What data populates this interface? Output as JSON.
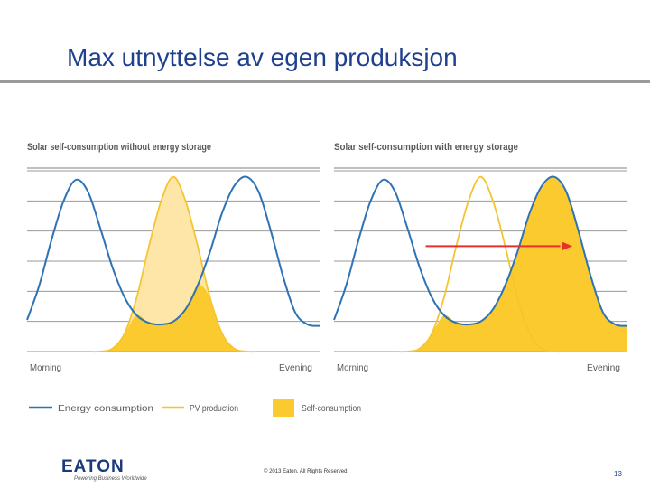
{
  "slide": {
    "title": "Max utnyttelse av egen produksjon",
    "copyright": "© 2013 Eaton. All Rights Reserved.",
    "page_number": "13"
  },
  "brand": {
    "logo_text": "EATON",
    "tagline": "Powering Business Worldwide"
  },
  "colors": {
    "consumption": "#2f73b5",
    "pv": "#f5c531",
    "self_consumption": "#fbca2e",
    "pv_fill_light": "#fde6a8",
    "arrow": "#e8312a",
    "grid": "#9a9a9a",
    "title": "#1f3f8f"
  },
  "chart_data": [
    {
      "type": "area",
      "title": "Solar self-consumption without energy storage",
      "x_tick_labels": [
        "Morning",
        "Evening"
      ],
      "x": [
        0,
        1,
        2,
        3,
        4,
        5,
        6,
        7,
        8,
        9,
        10,
        11,
        12,
        13,
        14,
        15,
        16,
        17,
        18,
        19,
        20,
        21,
        22,
        23,
        24
      ],
      "ylim": [
        0,
        6
      ],
      "grid": true,
      "series": [
        {
          "name": "Energy consumption",
          "style": "line",
          "values": [
            1.05,
            2.2,
            3.7,
            5.0,
            5.7,
            5.3,
            4.1,
            2.8,
            1.8,
            1.2,
            0.95,
            0.9,
            1.0,
            1.4,
            2.2,
            3.3,
            4.6,
            5.5,
            5.8,
            5.3,
            4.0,
            2.5,
            1.3,
            0.9,
            0.85
          ]
        },
        {
          "name": "PV production",
          "style": "line",
          "values": [
            0,
            0,
            0,
            0,
            0,
            0,
            0,
            0.1,
            0.6,
            1.8,
            3.5,
            5.0,
            5.8,
            5.0,
            3.5,
            1.8,
            0.6,
            0.1,
            0,
            0,
            0,
            0,
            0,
            0,
            0
          ]
        },
        {
          "name": "Self-consumption",
          "style": "area",
          "values": [
            0,
            0,
            0,
            0,
            0,
            0,
            0,
            0.1,
            0.6,
            1.2,
            0.95,
            0.9,
            1.0,
            1.4,
            2.2,
            1.8,
            0.6,
            0.1,
            0,
            0,
            0,
            0,
            0,
            0,
            0
          ]
        }
      ]
    },
    {
      "type": "area",
      "title": "Solar self-consumption with energy storage",
      "x_tick_labels": [
        "Morning",
        "Evening"
      ],
      "x": [
        0,
        1,
        2,
        3,
        4,
        5,
        6,
        7,
        8,
        9,
        10,
        11,
        12,
        13,
        14,
        15,
        16,
        17,
        18,
        19,
        20,
        21,
        22,
        23,
        24
      ],
      "ylim": [
        0,
        6
      ],
      "grid": true,
      "series": [
        {
          "name": "Energy consumption",
          "style": "line",
          "values": [
            1.05,
            2.2,
            3.7,
            5.0,
            5.7,
            5.3,
            4.1,
            2.8,
            1.8,
            1.2,
            0.95,
            0.9,
            1.0,
            1.4,
            2.2,
            3.3,
            4.6,
            5.5,
            5.8,
            5.3,
            4.0,
            2.5,
            1.3,
            0.9,
            0.85
          ]
        },
        {
          "name": "PV production",
          "style": "line",
          "values": [
            0,
            0,
            0,
            0,
            0,
            0,
            0,
            0.1,
            0.6,
            1.8,
            3.5,
            5.0,
            5.8,
            5.0,
            3.5,
            1.8,
            0.6,
            0.1,
            0,
            0,
            0,
            0,
            0,
            0,
            0
          ]
        },
        {
          "name": "Self-consumption",
          "style": "area",
          "values": [
            0,
            0,
            0,
            0,
            0,
            0,
            0,
            0.1,
            0.6,
            1.2,
            0.95,
            0.9,
            1.0,
            1.4,
            2.2,
            3.3,
            4.6,
            5.5,
            5.8,
            5.3,
            4.0,
            2.5,
            1.3,
            0.9,
            0.85
          ]
        }
      ],
      "annotation": "arrow-right"
    }
  ],
  "legend": {
    "placement": "bottom",
    "items": [
      {
        "label": "Energy consumption",
        "kind": "line",
        "color_key": "consumption"
      },
      {
        "label": "PV production",
        "kind": "line",
        "color_key": "pv"
      },
      {
        "label": "Self-consumption",
        "kind": "box",
        "color_key": "self_consumption"
      }
    ]
  }
}
